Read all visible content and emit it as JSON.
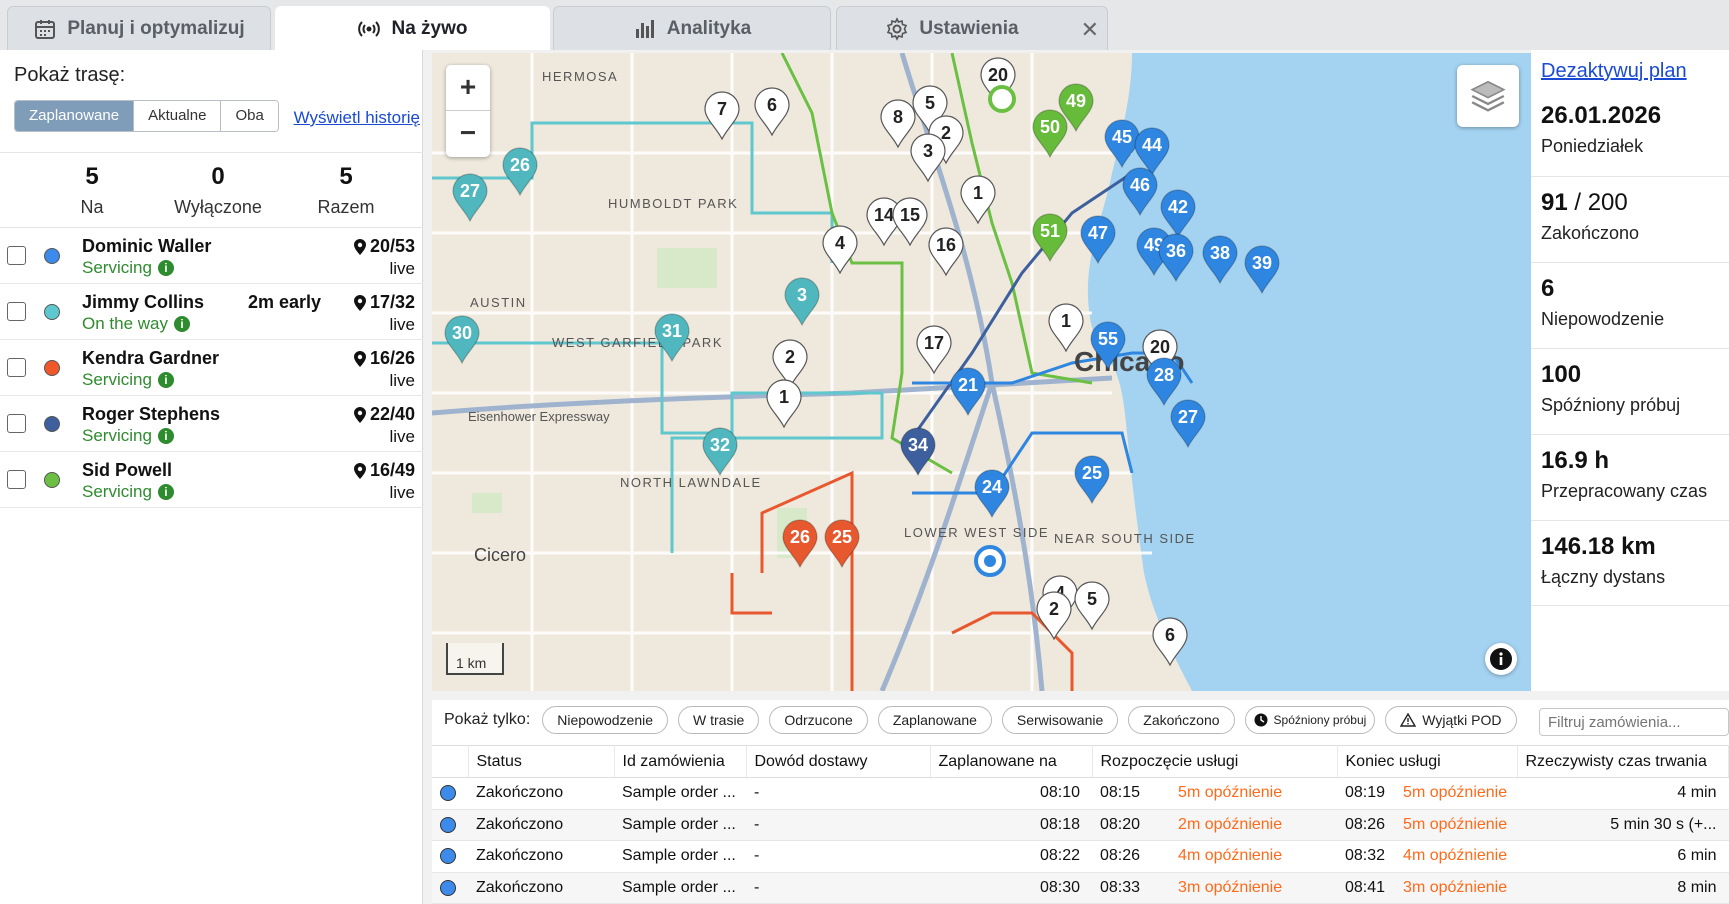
{
  "tabs": [
    {
      "label": "Planuj i optymalizuj",
      "icon": "calendar-icon"
    },
    {
      "label": "Na żywo",
      "icon": "broadcast-icon"
    },
    {
      "label": "Analityka",
      "icon": "bar-chart-icon"
    },
    {
      "label": "Ustawienia",
      "icon": "gear-icon"
    }
  ],
  "left": {
    "show_route_label": "Pokaż trasę:",
    "segments": [
      "Zaplanowane",
      "Aktualne",
      "Oba"
    ],
    "history_link": "Wyświetl historię",
    "stats": [
      {
        "value": "5",
        "label": "Na"
      },
      {
        "value": "0",
        "label": "Wyłączone"
      },
      {
        "value": "5",
        "label": "Razem"
      }
    ],
    "drivers": [
      {
        "name": "Dominic Waller",
        "status": "Servicing",
        "early": "",
        "count": "20/53",
        "live": "live",
        "color": "#3c8bea"
      },
      {
        "name": "Jimmy Collins",
        "status": "On the way",
        "early": "2m early",
        "count": "17/32",
        "live": "live",
        "color": "#5fc8cf"
      },
      {
        "name": "Kendra Gardner",
        "status": "Servicing",
        "early": "",
        "count": "16/26",
        "live": "live",
        "color": "#f0582a"
      },
      {
        "name": "Roger Stephens",
        "status": "Servicing",
        "early": "",
        "count": "22/40",
        "live": "live",
        "color": "#3d5f9d"
      },
      {
        "name": "Sid Powell",
        "status": "Servicing",
        "early": "",
        "count": "16/49",
        "live": "live",
        "color": "#6bc043"
      }
    ]
  },
  "map": {
    "zoom_in": "+",
    "zoom_out": "−",
    "scale": "1 km",
    "city_label": "Chicago",
    "place_labels": [
      "HERMOSA",
      "HUMBOLDT PARK",
      "AUSTIN",
      "WEST GARFIELD PARK",
      "NORTH LAWNDALE",
      "Cicero",
      "LOWER WEST SIDE",
      "NEAR SOUTH SIDE",
      "Eisenhower Expressway"
    ],
    "pins": [
      {
        "n": "7",
        "c": "#ffffff"
      },
      {
        "n": "6",
        "c": "#ffffff"
      },
      {
        "n": "20",
        "c": "#ffffff"
      },
      {
        "n": "5",
        "c": "#ffffff"
      },
      {
        "n": "8",
        "c": "#ffffff"
      },
      {
        "n": "2",
        "c": "#ffffff"
      },
      {
        "n": "3",
        "c": "#ffffff"
      },
      {
        "n": "1",
        "c": "#ffffff"
      },
      {
        "n": "4",
        "c": "#ffffff"
      },
      {
        "n": "14",
        "c": "#ffffff"
      },
      {
        "n": "15",
        "c": "#ffffff"
      },
      {
        "n": "16",
        "c": "#ffffff"
      },
      {
        "n": "17",
        "c": "#ffffff"
      },
      {
        "n": "2",
        "c": "#ffffff"
      },
      {
        "n": "1",
        "c": "#ffffff"
      },
      {
        "n": "1",
        "c": "#ffffff"
      },
      {
        "n": "20",
        "c": "#ffffff"
      },
      {
        "n": "27",
        "c": "#4fb7bd"
      },
      {
        "n": "26",
        "c": "#4fb7bd"
      },
      {
        "n": "30",
        "c": "#4fb7bd"
      },
      {
        "n": "31",
        "c": "#4fb7bd"
      },
      {
        "n": "3",
        "c": "#4fb7bd"
      },
      {
        "n": "32",
        "c": "#4fb7bd"
      },
      {
        "n": "49",
        "c": "#67bb3a"
      },
      {
        "n": "50",
        "c": "#67bb3a"
      },
      {
        "n": "51",
        "c": "#67bb3a"
      },
      {
        "n": "45",
        "c": "#2f86e0"
      },
      {
        "n": "44",
        "c": "#2f86e0"
      },
      {
        "n": "46",
        "c": "#2f86e0"
      },
      {
        "n": "42",
        "c": "#2f86e0"
      },
      {
        "n": "47",
        "c": "#2f86e0"
      },
      {
        "n": "49",
        "c": "#2f86e0"
      },
      {
        "n": "36",
        "c": "#2f86e0"
      },
      {
        "n": "38",
        "c": "#2f86e0"
      },
      {
        "n": "39",
        "c": "#2f86e0"
      },
      {
        "n": "55",
        "c": "#2f86e0"
      },
      {
        "n": "28",
        "c": "#2f86e0"
      },
      {
        "n": "27",
        "c": "#2f86e0"
      },
      {
        "n": "25",
        "c": "#2f86e0"
      },
      {
        "n": "24",
        "c": "#2f86e0"
      },
      {
        "n": "21",
        "c": "#2f86e0"
      },
      {
        "n": "34",
        "c": "#3d5f9d"
      },
      {
        "n": "26",
        "c": "#e8582f"
      },
      {
        "n": "25",
        "c": "#e8582f"
      },
      {
        "n": "4",
        "c": "#ffffff"
      },
      {
        "n": "5",
        "c": "#ffffff"
      },
      {
        "n": "2",
        "c": "#ffffff"
      },
      {
        "n": "6",
        "c": "#ffffff"
      }
    ]
  },
  "summary": {
    "deactivate_link": "Dezaktywuj plan",
    "date": "26.01.2026",
    "weekday": "Poniedziałek",
    "completed_value": "91",
    "completed_total": " / 200",
    "completed_label": "Zakończono",
    "failed_value": "6",
    "failed_label": "Niepowodzenie",
    "late_value": "100",
    "late_label": "Spóźniony próbuj",
    "worked_value": "16.9 h",
    "worked_label": "Przepracowany czas",
    "distance_value": "146.18 km",
    "distance_label": "Łączny dystans"
  },
  "filters": {
    "label": "Pokaż tylko:",
    "chips": [
      "Niepowodzenie",
      "W trasie",
      "Odrzucone",
      "Zaplanowane",
      "Serwisowanie",
      "Zakończono",
      "Spóźniony próbuj",
      "Wyjątki POD"
    ],
    "search_placeholder": "Filtruj zamówienia..."
  },
  "table": {
    "headers": [
      "Status",
      "Id zamówienia",
      "Dowód dostawy",
      "Zaplanowane na",
      "Rozpoczęcie usługi",
      "Koniec usługi",
      "Rzeczywisty czas trwania"
    ],
    "rows": [
      {
        "status": "Zakończono",
        "id": "Sample order ...",
        "pod": "-",
        "planned": "08:10",
        "start": "08:15",
        "start_late": "5m opóźnienie",
        "end": "08:19",
        "end_late": "5m opóźnienie",
        "duration": "4 min"
      },
      {
        "status": "Zakończono",
        "id": "Sample order ...",
        "pod": "-",
        "planned": "08:18",
        "start": "08:20",
        "start_late": "2m opóźnienie",
        "end": "08:26",
        "end_late": "5m opóźnienie",
        "duration": "5 min 30 s (+..."
      },
      {
        "status": "Zakończono",
        "id": "Sample order ...",
        "pod": "-",
        "planned": "08:22",
        "start": "08:26",
        "start_late": "4m opóźnienie",
        "end": "08:32",
        "end_late": "4m opóźnienie",
        "duration": "6 min"
      },
      {
        "status": "Zakończono",
        "id": "Sample order ...",
        "pod": "-",
        "planned": "08:30",
        "start": "08:33",
        "start_late": "3m opóźnienie",
        "end": "08:41",
        "end_late": "3m opóźnienie",
        "duration": "8 min"
      }
    ]
  }
}
